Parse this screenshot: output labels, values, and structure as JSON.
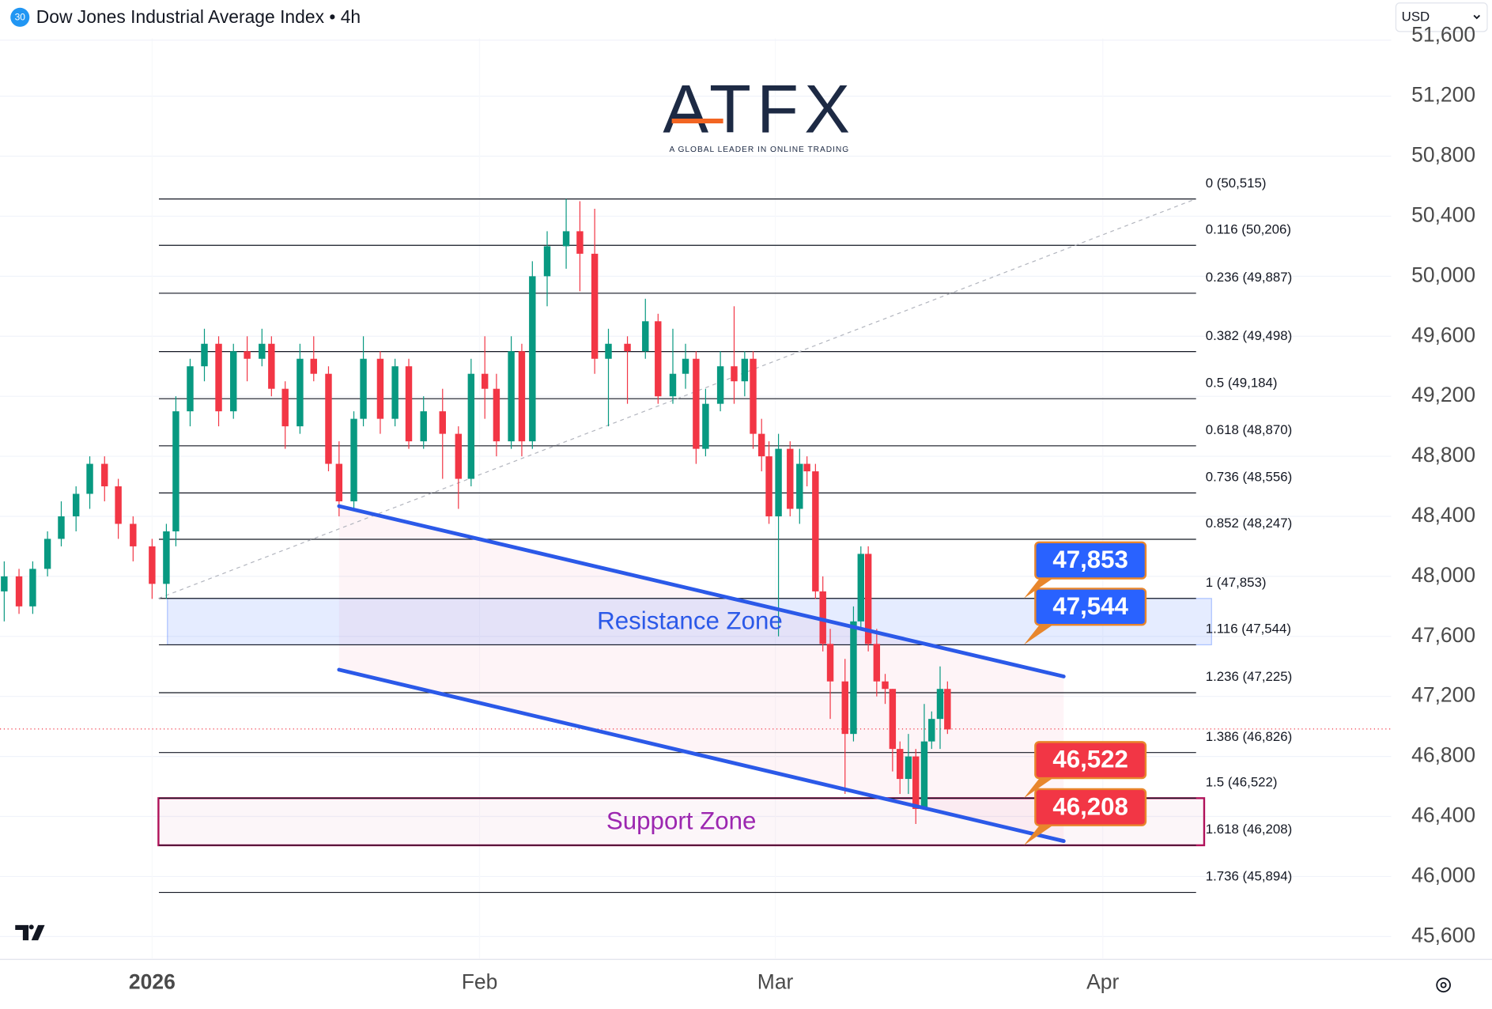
{
  "chart_data": {
    "type": "candlestick",
    "title": "Dow Jones Industrial Average Index • 4h",
    "badge": "30",
    "currency": "USD",
    "logo": "ATFX",
    "tagline": "A GLOBAL LEADER IN ONLINE TRADING",
    "up_color": "#089981",
    "down_color": "#f23645",
    "grid": true,
    "xlim": [
      -14.4,
      117.3
    ],
    "ylim": [
      45454,
      51840
    ],
    "xticks": [
      {
        "value": 0,
        "label": "2026"
      },
      {
        "value": 31,
        "label": "Feb"
      },
      {
        "value": 59,
        "label": "Mar"
      },
      {
        "value": 90,
        "label": "Apr"
      }
    ],
    "yticks": [
      {
        "value": 45600,
        "label": "45,600"
      },
      {
        "value": 46000,
        "label": "46,000"
      },
      {
        "value": 46400,
        "label": "46,400"
      },
      {
        "value": 46800,
        "label": "46,800"
      },
      {
        "value": 47200,
        "label": "47,200"
      },
      {
        "value": 47600,
        "label": "47,600"
      },
      {
        "value": 48000,
        "label": "48,000"
      },
      {
        "value": 48400,
        "label": "48,400"
      },
      {
        "value": 48800,
        "label": "48,800"
      },
      {
        "value": 49200,
        "label": "49,200"
      },
      {
        "value": 49600,
        "label": "49,600"
      },
      {
        "value": 50000,
        "label": "50,000"
      },
      {
        "value": 50400,
        "label": "50,400"
      },
      {
        "value": 50800,
        "label": "50,800"
      },
      {
        "value": 51200,
        "label": "51,200"
      },
      {
        "value": 51600,
        "label": "51,600"
      }
    ],
    "x": [
      -14.0,
      -12.6,
      -11.3,
      -9.9,
      -8.6,
      -7.2,
      -5.9,
      -4.5,
      -3.2,
      -1.8,
      0,
      1.35,
      2.25,
      3.6,
      4.95,
      6.3,
      7.7,
      9.0,
      10.4,
      11.3,
      12.6,
      14.0,
      15.3,
      16.7,
      17.7,
      19.1,
      20.0,
      21.6,
      23.0,
      24.3,
      25.7,
      27.5,
      29.0,
      30.2,
      31.5,
      32.6,
      34.0,
      35.0,
      36.0,
      37.4,
      39.2,
      40.5,
      41.9,
      43.2,
      45.0,
      46.7,
      47.9,
      49.3,
      50.5,
      51.5,
      52.4,
      53.8,
      55.1,
      56.1,
      56.9,
      57.7,
      58.4,
      59.3,
      60.4,
      61.3,
      62.0,
      62.8,
      63.5,
      64.2,
      65.6,
      66.4,
      67.1,
      67.8,
      68.6,
      69.4,
      70.1,
      70.8,
      71.6,
      72.3,
      73.1,
      73.8,
      74.6,
      75.3
    ],
    "open": [
      47900,
      48000,
      47800,
      48050,
      48250,
      48400,
      48550,
      48750,
      48600,
      48350,
      48200,
      47950,
      48300,
      49100,
      49400,
      49550,
      49100,
      49500,
      49450,
      49550,
      49250,
      49000,
      49450,
      49350,
      48750,
      48500,
      49050,
      49450,
      49050,
      49400,
      48900,
      49100,
      48950,
      48650,
      49350,
      49250,
      48900,
      49500,
      48900,
      50000,
      50200,
      50300,
      50150,
      49450,
      49550,
      49500,
      49700,
      49200,
      49350,
      49450,
      48850,
      49150,
      49400,
      49300,
      49450,
      48950,
      48800,
      48400,
      48850,
      48450,
      48750,
      48700,
      47900,
      47550,
      47300,
      46950,
      47700,
      48150,
      47550,
      47300,
      47250,
      46850,
      46650,
      46800,
      46450,
      46900,
      47050,
      47250
    ],
    "high": [
      48100,
      48050,
      48100,
      48300,
      48500,
      48600,
      48800,
      48800,
      48650,
      48400,
      48250,
      48350,
      49200,
      49450,
      49650,
      49600,
      49550,
      49600,
      49650,
      49600,
      49300,
      49550,
      49600,
      49400,
      48900,
      49100,
      49600,
      49500,
      49450,
      49450,
      49200,
      49250,
      49000,
      49450,
      49600,
      49350,
      49600,
      49550,
      50100,
      50300,
      50515,
      50500,
      50450,
      49650,
      49600,
      49850,
      49750,
      49650,
      49550,
      49500,
      49250,
      49500,
      49800,
      49500,
      49500,
      49050,
      48900,
      48950,
      48900,
      48850,
      48800,
      48750,
      48000,
      47650,
      47450,
      47800,
      48200,
      48200,
      47650,
      47350,
      47250,
      46900,
      46950,
      46850,
      47150,
      47100,
      47400,
      47300
    ],
    "low": [
      47700,
      47750,
      47750,
      48000,
      48200,
      48300,
      48450,
      48500,
      48250,
      48100,
      47850,
      47850,
      48200,
      49000,
      49300,
      49000,
      49050,
      49300,
      49400,
      49200,
      48850,
      48950,
      49300,
      48700,
      48400,
      48450,
      49000,
      48950,
      49000,
      48850,
      48850,
      48650,
      48450,
      48600,
      49050,
      48800,
      48850,
      48800,
      48850,
      49800,
      50050,
      49900,
      49350,
      49000,
      49150,
      49450,
      49150,
      49150,
      49250,
      48750,
      48800,
      49100,
      49150,
      49200,
      48850,
      48700,
      48350,
      47600,
      48400,
      48350,
      48600,
      47850,
      47500,
      47050,
      46550,
      46900,
      47650,
      47500,
      47200,
      47150,
      46700,
      46550,
      46550,
      46350,
      46450,
      46850,
      46850,
      46950
    ],
    "close": [
      48000,
      47800,
      48050,
      48250,
      48400,
      48550,
      48750,
      48600,
      48350,
      48200,
      47950,
      48300,
      49100,
      49400,
      49550,
      49100,
      49500,
      49450,
      49550,
      49250,
      49000,
      49450,
      49350,
      48750,
      48500,
      49050,
      49450,
      49050,
      49400,
      48900,
      49100,
      48950,
      48650,
      49350,
      49250,
      48900,
      49500,
      48900,
      50000,
      50200,
      50300,
      50150,
      49450,
      49550,
      49500,
      49700,
      49200,
      49350,
      49450,
      48850,
      49150,
      49400,
      49300,
      49450,
      48950,
      48800,
      48400,
      48850,
      48450,
      48750,
      48700,
      47900,
      47550,
      47300,
      46950,
      47700,
      48150,
      47550,
      47300,
      47250,
      46850,
      46650,
      46800,
      46450,
      46900,
      47050,
      47250,
      46980
    ],
    "last_price": 46983,
    "fib_levels": [
      {
        "value": 50515,
        "label": "0 (50,515)"
      },
      {
        "value": 50206,
        "label": "0.116 (50,206)"
      },
      {
        "value": 49887,
        "label": "0.236 (49,887)"
      },
      {
        "value": 49498,
        "label": "0.382 (49,498)"
      },
      {
        "value": 49184,
        "label": "0.5 (49,184)"
      },
      {
        "value": 48870,
        "label": "0.618 (48,870)"
      },
      {
        "value": 48556,
        "label": "0.736 (48,556)"
      },
      {
        "value": 48247,
        "label": "0.852 (48,247)"
      },
      {
        "value": 47853,
        "label": "1 (47,853)"
      },
      {
        "value": 47544,
        "label": "1.116 (47,544)"
      },
      {
        "value": 47225,
        "label": "1.236 (47,225)"
      },
      {
        "value": 46826,
        "label": "1.386 (46,826)"
      },
      {
        "value": 46522,
        "label": "1.5 (46,522)"
      },
      {
        "value": 46208,
        "label": "1.618 (46,208)"
      },
      {
        "value": 45894,
        "label": "1.736 (45,894)"
      }
    ],
    "fib_trend": {
      "x": [
        0.6,
        98.8
      ],
      "values": [
        47853,
        50515
      ]
    },
    "channel_upper": {
      "x": [
        17.7,
        86.3
      ],
      "values": [
        48468,
        47333
      ]
    },
    "channel_lower": {
      "x": [
        17.7,
        86.3
      ],
      "values": [
        47378,
        46236
      ]
    },
    "zones": [
      {
        "label": "Resistance Zone",
        "range": [
          47544,
          47853
        ],
        "x": [
          1.45,
          100.3
        ],
        "color": "#2962ff"
      },
      {
        "label": "Support Zone",
        "range": [
          46208,
          46522
        ],
        "x": [
          0.6,
          99.6
        ],
        "color": "#b0125a"
      }
    ],
    "callouts": [
      {
        "value": 47853,
        "label": "47,853",
        "color": "#2962ff"
      },
      {
        "value": 47544,
        "label": "47,544",
        "color": "#2962ff"
      },
      {
        "value": 46522,
        "label": "46,522",
        "color": "#f23645"
      },
      {
        "value": 46208,
        "label": "46,208",
        "color": "#f23645"
      }
    ]
  }
}
